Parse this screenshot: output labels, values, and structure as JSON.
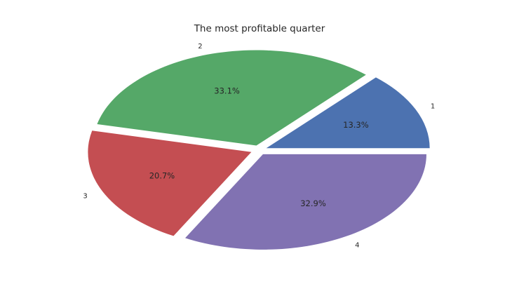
{
  "chart_data": {
    "type": "pie",
    "title": "The most profitable quarter",
    "categories": [
      "1",
      "2",
      "3",
      "4"
    ],
    "values": [
      13.3,
      33.1,
      20.7,
      32.9
    ],
    "value_labels": [
      "13.3%",
      "33.1%",
      "20.7%",
      "32.9%"
    ],
    "colors": [
      "#4c72b0",
      "#55a868",
      "#c44e52",
      "#8172b2"
    ],
    "start_angle": 0,
    "direction": "counterclockwise",
    "exploded": true,
    "legend": "none"
  }
}
